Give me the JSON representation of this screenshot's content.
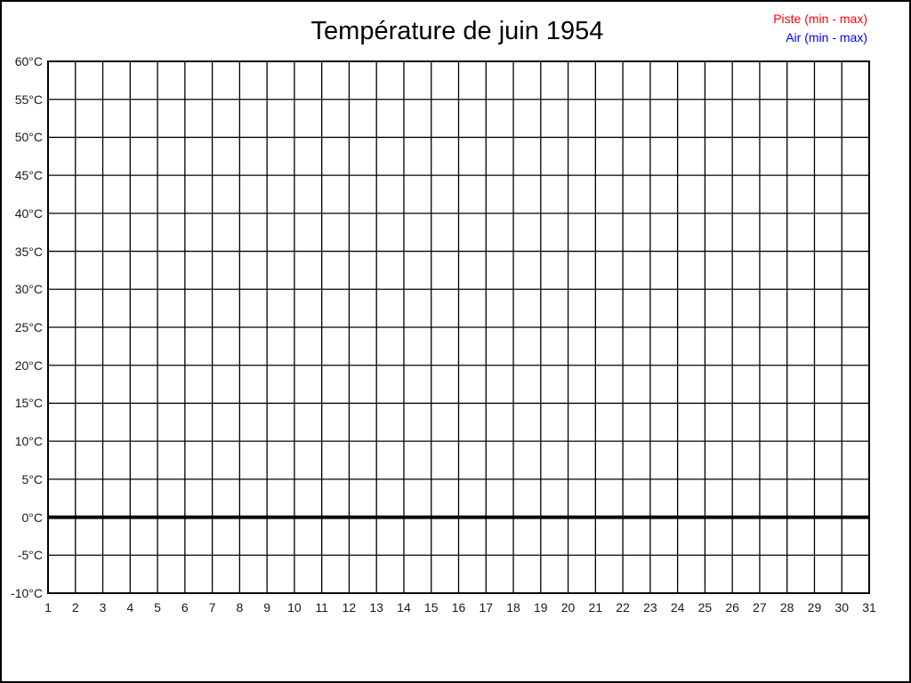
{
  "page": {
    "background": "#ffffff",
    "border_color": "#000000"
  },
  "chart_data": {
    "type": "line",
    "title": "Température de juin 1954",
    "xlabel": "",
    "ylabel": "",
    "xlim": [
      1,
      31
    ],
    "ylim": [
      -10,
      60
    ],
    "grid": true,
    "grid_color": "#000000",
    "x_tick_values": [
      1,
      2,
      3,
      4,
      5,
      6,
      7,
      8,
      9,
      10,
      11,
      12,
      13,
      14,
      15,
      16,
      17,
      18,
      19,
      20,
      21,
      22,
      23,
      24,
      25,
      26,
      27,
      28,
      29,
      30,
      31
    ],
    "x_tick_labels": [
      "1",
      "2",
      "3",
      "4",
      "5",
      "6",
      "7",
      "8",
      "9",
      "10",
      "11",
      "12",
      "13",
      "14",
      "15",
      "16",
      "17",
      "18",
      "19",
      "20",
      "21",
      "22",
      "23",
      "24",
      "25",
      "26",
      "27",
      "28",
      "29",
      "30",
      "31"
    ],
    "y_tick_values": [
      60,
      55,
      50,
      45,
      40,
      35,
      30,
      25,
      20,
      15,
      10,
      5,
      0,
      -5,
      -10
    ],
    "y_tick_labels": [
      "60°C",
      "55°C",
      "50°C",
      "45°C",
      "40°C",
      "35°C",
      "30°C",
      "25°C",
      "20°C",
      "15°C",
      "10°C",
      "5°C",
      "0°C",
      "-5°C",
      "-10°C"
    ],
    "zero_line": {
      "value": 0,
      "color": "#000000"
    },
    "legend": {
      "position": "top-right",
      "items": [
        {
          "label": "Piste (min - max)",
          "color": "#ff0000"
        },
        {
          "label": "Air (min - max)",
          "color": "#0000ff"
        }
      ]
    },
    "series": [
      {
        "name": "Piste (min - max)",
        "color": "#ff0000",
        "x": [],
        "values": []
      },
      {
        "name": "Air (min - max)",
        "color": "#0000ff",
        "x": [],
        "values": []
      }
    ]
  }
}
